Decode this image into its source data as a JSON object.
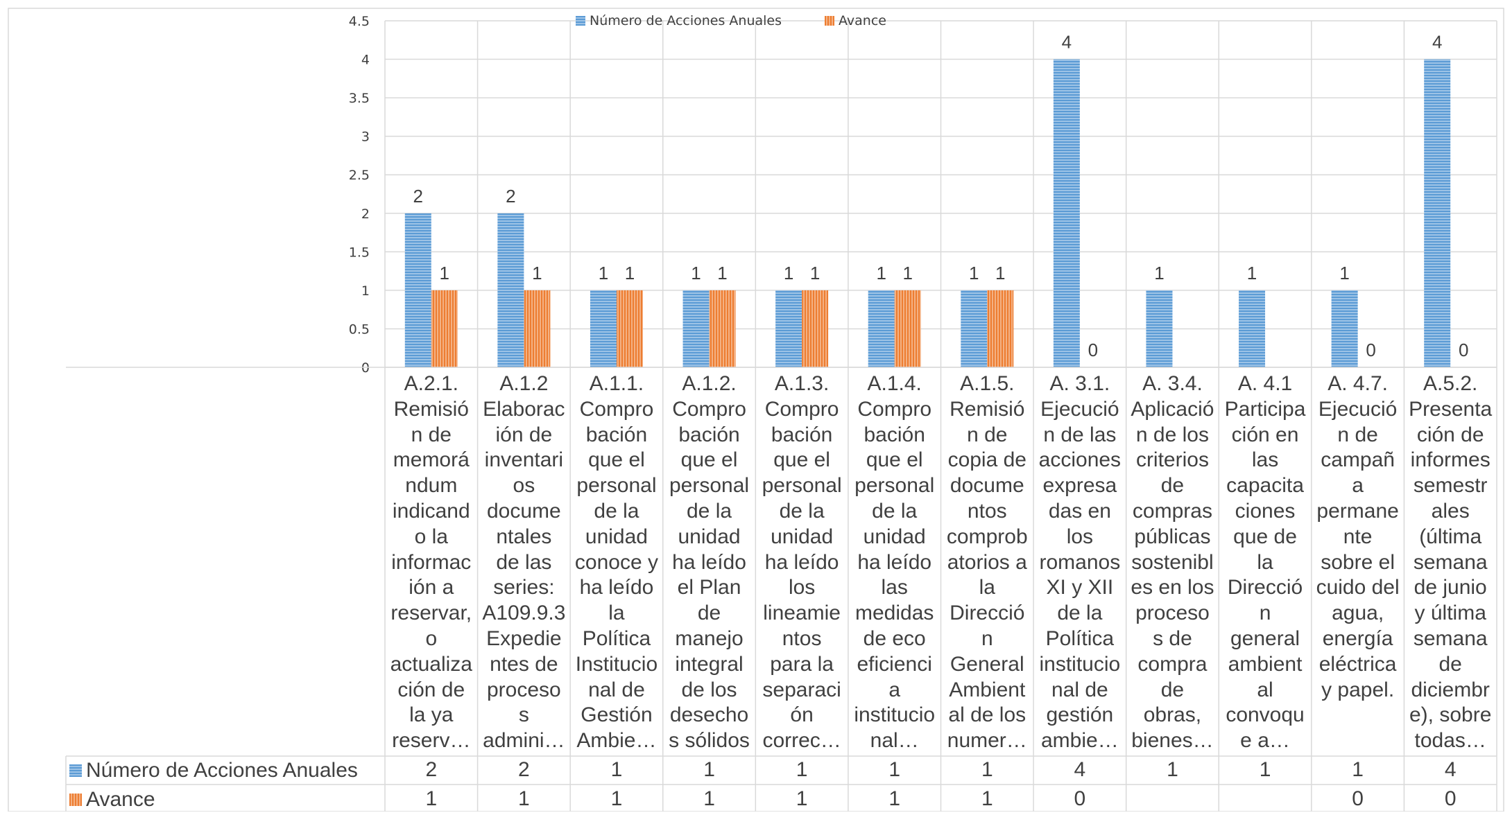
{
  "chart_data": {
    "type": "bar",
    "title": "",
    "xlabel": "",
    "ylabel": "",
    "ylim": [
      0,
      4.5
    ],
    "yticks": [
      "0",
      "0.5",
      "1",
      "1.5",
      "2",
      "2.5",
      "3",
      "3.5",
      "4",
      "4.5"
    ],
    "grid": true,
    "legend_position": "top",
    "categories": [
      "A.2.1. Remisión de memorándum indicando la información a reservar, o actualización de la ya reserv…",
      "A.1.2 Elaboración de inventarios documentales de las series: A109.9.3 Expedientes de procesos admini…",
      "A.1.1. Comprobación que el personal de la unidad conoce y ha leído la Política Institucional de Gestión Ambie…",
      "A.1.2. Comprobación que el personal de la unidad ha leído el Plan de manejo integral de los desechos sólidos",
      "A.1.3. Comprobación que el personal de la unidad ha leído los lineamientos para la separación correc…",
      "A.1.4. Comprobación que el personal de la unidad ha leído las medidas de eco eficiencia institucional…",
      "A.1.5. Remisión de copia de documentos comprobatorios a la Dirección General Ambiental de los numer…",
      "A. 3.1. Ejecución de las acciones expresadas en los romanos XI y XII de la Política institucional de gestión ambie…",
      "A. 3.4. Aplicación de los criterios de compras públicas sostenibles en los procesos de compra de obras, bienes…",
      "A. 4.1 Participación en las capacitaciones que de la Dirección general ambiental convoque a…",
      "A. 4.7. Ejecución de campaña permanente sobre el cuido del agua, energía eléctrica y papel.",
      "A.5.2. Presentación de informes semestrales (última semana de junio y última semana de diciembre), sobre todas…"
    ],
    "category_lines": [
      [
        "A.2.1.",
        "Remisió",
        "n de",
        "memorá",
        "ndum",
        "indicand",
        "o la",
        "informac",
        "ión a",
        "reservar,",
        "o",
        "actualiza",
        "ción de",
        "la ya",
        "reserv…"
      ],
      [
        "A.1.2",
        "Elaborac",
        "ión de",
        "inventari",
        "os",
        "docume",
        "ntales",
        "de las",
        "series:",
        "A109.9.3",
        "Expedie",
        "ntes de",
        "proceso",
        "s",
        "admini…"
      ],
      [
        "A.1.1.",
        "Compro",
        "bación",
        "que el",
        "personal",
        "de la",
        "unidad",
        "conoce y",
        "ha leído",
        "la",
        "Política",
        "Institucio",
        "nal de",
        "Gestión",
        "Ambie…"
      ],
      [
        "A.1.2.",
        "Compro",
        "bación",
        "que el",
        "personal",
        "de la",
        "unidad",
        "ha leído",
        "el Plan",
        "de",
        "manejo",
        "integral",
        "de los",
        "desecho",
        "s sólidos"
      ],
      [
        "A.1.3.",
        "Compro",
        "bación",
        "que el",
        "personal",
        "de la",
        "unidad",
        "ha leído",
        "los",
        "lineamie",
        "ntos",
        "para la",
        "separaci",
        "ón",
        "correc…"
      ],
      [
        "A.1.4.",
        "Compro",
        "bación",
        "que el",
        "personal",
        "de la",
        "unidad",
        "ha leído",
        "las",
        "medidas",
        "de eco",
        "eficienci",
        "a",
        "institucio",
        "nal…"
      ],
      [
        "A.1.5.",
        "Remisió",
        "n de",
        "copia de",
        "docume",
        "ntos",
        "comprob",
        "atorios a",
        "la",
        "Direcció",
        "n",
        "General",
        "Ambient",
        "al de los",
        "numer…"
      ],
      [
        "A. 3.1.",
        "Ejecució",
        "n de las",
        "acciones",
        "expresa",
        "das en",
        "los",
        "romanos",
        "XI y XII",
        "de la",
        "Política",
        "institucio",
        "nal de",
        "gestión",
        "ambie…"
      ],
      [
        "A. 3.4.",
        "Aplicació",
        "n de los",
        "criterios",
        "de",
        "compras",
        "públicas",
        "sostenibl",
        "es en los",
        "proceso",
        "s de",
        "compra",
        "de",
        "obras,",
        "bienes…"
      ],
      [
        "A. 4.1",
        "Participa",
        "ción en",
        "las",
        "capacita",
        "ciones",
        "que de",
        "la",
        "Direcció",
        "n",
        "general",
        "ambient",
        "al",
        "convoqu",
        "e a…"
      ],
      [
        "A. 4.7.",
        "Ejecució",
        "n de",
        "campañ",
        "a",
        "permane",
        "nte",
        "sobre el",
        "cuido del",
        "agua,",
        "energía",
        "eléctrica",
        "y papel."
      ],
      [
        "A.5.2.",
        "Presenta",
        "ción de",
        "informes",
        "semestr",
        "ales",
        "(última",
        "semana",
        "de junio",
        "y última",
        "semana",
        "de",
        "diciembr",
        "e), sobre",
        "todas…"
      ]
    ],
    "series": [
      {
        "name": "Número de Acciones Anuales",
        "color": "#5b9bd5",
        "values": [
          2,
          2,
          1,
          1,
          1,
          1,
          1,
          4,
          1,
          1,
          1,
          4
        ],
        "labels": [
          "2",
          "2",
          "1",
          "1",
          "1",
          "1",
          "1",
          "4",
          "1",
          "1",
          "1",
          "4"
        ],
        "table": [
          "2",
          "2",
          "1",
          "1",
          "1",
          "1",
          "1",
          "4",
          "1",
          "1",
          "1",
          "4"
        ]
      },
      {
        "name": "Avance",
        "color": "#ed7d31",
        "values": [
          1,
          1,
          1,
          1,
          1,
          1,
          1,
          0,
          null,
          null,
          0,
          0
        ],
        "labels": [
          "1",
          "1",
          "1",
          "1",
          "1",
          "1",
          "1",
          "0",
          "",
          "",
          "0",
          "0"
        ],
        "table": [
          "1",
          "1",
          "1",
          "1",
          "1",
          "1",
          "1",
          "0",
          "",
          "",
          "0",
          "0"
        ]
      }
    ]
  }
}
